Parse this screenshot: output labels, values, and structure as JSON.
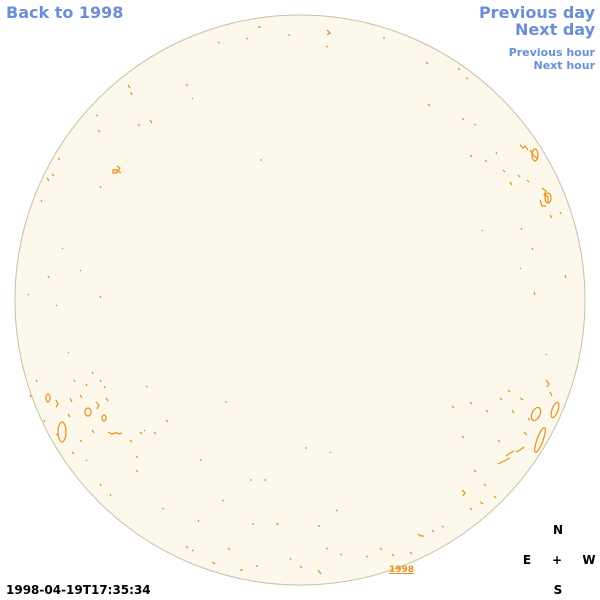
{
  "nav": {
    "back": "Back to 1998",
    "previous_day": "Previous day",
    "next_day": "Next day",
    "previous_hour": "Previous hour",
    "next_hour": "Next hour"
  },
  "timestamp": "1998-04-19T17:35:34",
  "year_label": "1998",
  "compass": {
    "n": "N",
    "e": "E",
    "w": "W",
    "s": "S",
    "center": "+"
  },
  "colors": {
    "disk_fill": "#fdf8ec",
    "disk_stroke": "#c9bfa8",
    "feature": "#e8901a",
    "link": "#6b8fd6"
  }
}
